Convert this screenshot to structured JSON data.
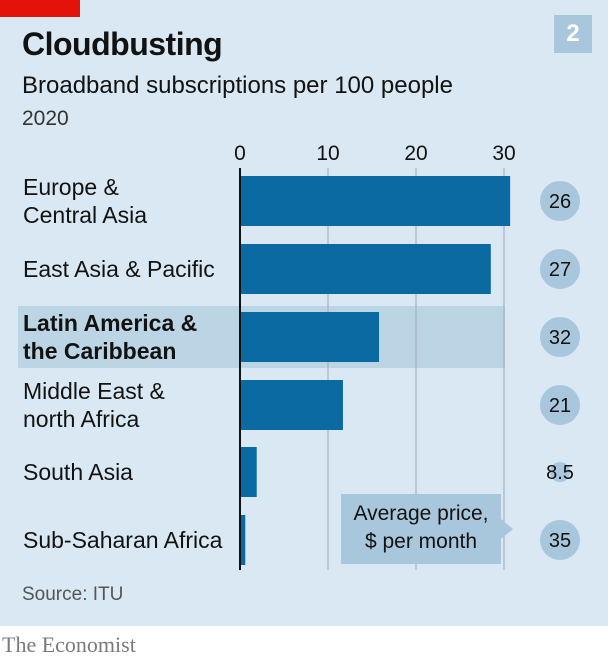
{
  "header": {
    "title": "Cloudbusting",
    "subtitle": "Broadband subscriptions per 100 people",
    "year": "2020",
    "chart_number": "2"
  },
  "price_note": {
    "line1": "Average price,",
    "line2": "$ per month"
  },
  "footer": {
    "source": "Source: ITU",
    "brand": "The Economist"
  },
  "colors": {
    "bar": "#0c6aa3",
    "highlight_band": "#bcd5e5",
    "price_circle": "#a9c7dc",
    "grid": "#9aa9b4",
    "axis": "#121212",
    "accent_red": "#e3120b"
  },
  "chart_data": {
    "type": "bar",
    "orientation": "horizontal",
    "categories": [
      [
        "Europe &",
        "Central Asia"
      ],
      [
        "East Asia & Pacific"
      ],
      [
        "Latin America &",
        "the Caribbean"
      ],
      [
        "Middle East &",
        "north Africa"
      ],
      [
        "South Asia"
      ],
      [
        "Sub-Saharan Africa"
      ]
    ],
    "values": [
      30.7,
      28.5,
      15.8,
      11.7,
      1.9,
      0.6
    ],
    "highlighted_index": 2,
    "average_price": [
      "26",
      "27",
      "32",
      "21",
      "8.5",
      "35"
    ],
    "xlim": [
      0,
      30
    ],
    "xticks": [
      0,
      10,
      20,
      30
    ],
    "grid": true
  }
}
